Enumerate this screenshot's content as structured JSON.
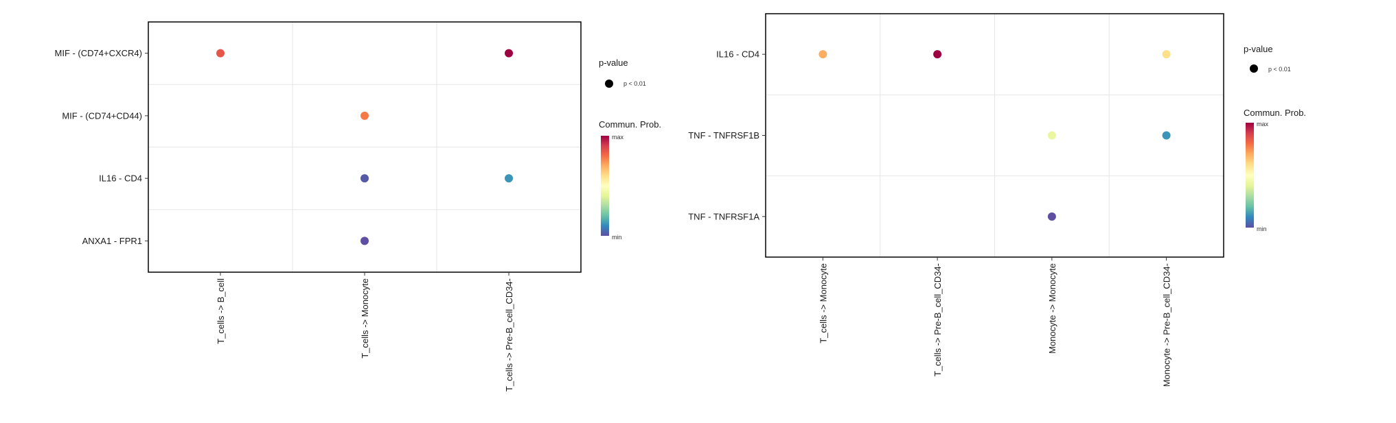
{
  "colors": {
    "scale": [
      "#5e4fa2",
      "#3288bd",
      "#66c2a5",
      "#abdda4",
      "#e6f598",
      "#ffffbf",
      "#fee08b",
      "#fdae61",
      "#f46d43",
      "#d53e4f",
      "#9e0142"
    ],
    "grid": "#e5e5e5",
    "axis": "#000000"
  },
  "chart_data": [
    {
      "type": "scatter",
      "title": "",
      "xlabel": "",
      "ylabel": "",
      "categories_x": [
        "T_cells -> B_cell",
        "T_cells -> Monocyte",
        "T_cells -> Pre-B_cell_CD34-"
      ],
      "categories_y": [
        "MIF - (CD74+CXCR4)",
        "MIF - (CD74+CD44)",
        "IL16 - CD4",
        "ANXA1 - FPR1"
      ],
      "points": [
        {
          "x": "T_cells -> B_cell",
          "y": "MIF - (CD74+CXCR4)",
          "prob": 0.85
        },
        {
          "x": "T_cells -> Pre-B_cell_CD34-",
          "y": "MIF - (CD74+CXCR4)",
          "prob": 1.0
        },
        {
          "x": "T_cells -> Monocyte",
          "y": "MIF - (CD74+CD44)",
          "prob": 0.78
        },
        {
          "x": "T_cells -> Monocyte",
          "y": "IL16 - CD4",
          "prob": 0.02
        },
        {
          "x": "T_cells -> Pre-B_cell_CD34-",
          "y": "IL16 - CD4",
          "prob": 0.12
        },
        {
          "x": "T_cells -> Monocyte",
          "y": "ANXA1 - FPR1",
          "prob": 0.0
        }
      ],
      "legend": {
        "pvalue_title": "p-value",
        "pvalue_label": "p < 0.01",
        "color_title": "Commun. Prob.",
        "max_label": "max",
        "min_label": "min",
        "placement": "right"
      },
      "grid": true
    },
    {
      "type": "scatter",
      "title": "",
      "xlabel": "",
      "ylabel": "",
      "categories_x": [
        "T_cells -> Monocyte",
        "T_cells -> Pre-B_cell_CD34-",
        "Monocyte -> Monocyte",
        "Monocyte -> Pre-B_cell_CD34-"
      ],
      "categories_y": [
        "IL16 - CD4",
        "TNF - TNFRSF1B",
        "TNF - TNFRSF1A"
      ],
      "points": [
        {
          "x": "T_cells -> Monocyte",
          "y": "IL16 - CD4",
          "prob": 0.7
        },
        {
          "x": "T_cells -> Pre-B_cell_CD34-",
          "y": "IL16 - CD4",
          "prob": 1.0
        },
        {
          "x": "Monocyte -> Pre-B_cell_CD34-",
          "y": "IL16 - CD4",
          "prob": 0.6
        },
        {
          "x": "Monocyte -> Monocyte",
          "y": "TNF - TNFRSF1B",
          "prob": 0.42
        },
        {
          "x": "Monocyte -> Pre-B_cell_CD34-",
          "y": "TNF - TNFRSF1B",
          "prob": 0.12
        },
        {
          "x": "Monocyte -> Monocyte",
          "y": "TNF - TNFRSF1A",
          "prob": 0.0
        }
      ],
      "legend": {
        "pvalue_title": "p-value",
        "pvalue_label": "p < 0.01",
        "color_title": "Commun. Prob.",
        "max_label": "max",
        "min_label": "min",
        "placement": "right"
      },
      "grid": true
    }
  ]
}
